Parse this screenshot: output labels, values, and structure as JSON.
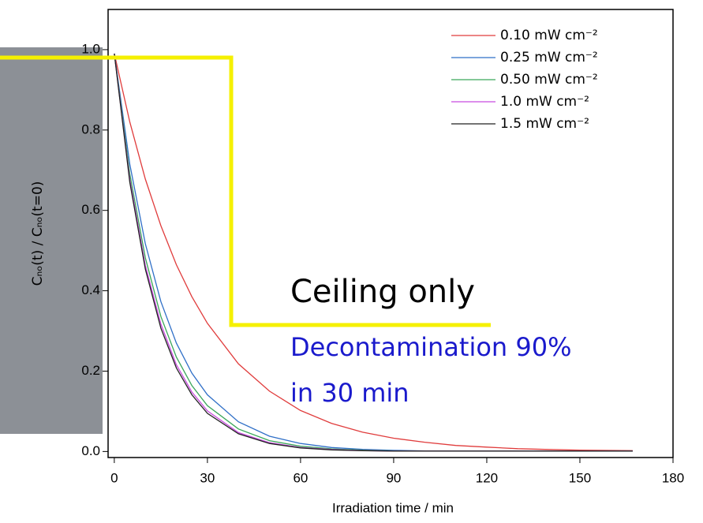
{
  "chart_data": {
    "type": "line",
    "xlabel": "Irradiation time / min",
    "ylabel": "Cₙₒ(t) / Cₙₒ(t=0)",
    "x": [
      0,
      5,
      10,
      15,
      20,
      25,
      30,
      40,
      50,
      60,
      70,
      80,
      90,
      100,
      110,
      120,
      130,
      140,
      150,
      167
    ],
    "series": [
      {
        "name": "0.10 mW cm⁻²",
        "color": "#e03c3c",
        "values": [
          0.99,
          0.82,
          0.678,
          0.562,
          0.465,
          0.385,
          0.319,
          0.218,
          0.15,
          0.102,
          0.07,
          0.048,
          0.033,
          0.023,
          0.015,
          0.011,
          0.007,
          0.005,
          0.0035,
          0.002
        ]
      },
      {
        "name": "0.25 mW cm⁻²",
        "color": "#2f6fc7",
        "values": [
          0.99,
          0.715,
          0.517,
          0.373,
          0.27,
          0.195,
          0.141,
          0.074,
          0.038,
          0.02,
          0.01,
          0.0055,
          0.0029,
          0.0015,
          0.001,
          0.001,
          0.001,
          0.001,
          0.001,
          0.001
        ]
      },
      {
        "name": "0.50 mW cm⁻²",
        "color": "#3aa65a",
        "values": [
          0.99,
          0.691,
          0.482,
          0.336,
          0.235,
          0.164,
          0.114,
          0.056,
          0.027,
          0.013,
          0.0065,
          0.0032,
          0.0015,
          0.001,
          0.001,
          0.001,
          0.001,
          0.001,
          0.001,
          0.001
        ]
      },
      {
        "name": "1.0 mW cm⁻²",
        "color": "#c84be0",
        "values": [
          0.99,
          0.677,
          0.463,
          0.317,
          0.216,
          0.148,
          0.101,
          0.047,
          0.022,
          0.01,
          0.005,
          0.0023,
          0.001,
          0.001,
          0.001,
          0.001,
          0.001,
          0.001,
          0.001,
          0.001
        ]
      },
      {
        "name": "1.5 mW cm⁻²",
        "color": "#222222",
        "values": [
          0.99,
          0.67,
          0.454,
          0.307,
          0.208,
          0.141,
          0.095,
          0.044,
          0.02,
          0.009,
          0.004,
          0.002,
          0.001,
          0.001,
          0.001,
          0.001,
          0.001,
          0.001,
          0.001,
          0.001
        ]
      }
    ],
    "xlim": [
      -2,
      180
    ],
    "ylim": [
      -0.015,
      1.1
    ],
    "xticks": [
      0,
      30,
      60,
      90,
      120,
      150,
      180
    ],
    "yticks": [
      {
        "value": 0,
        "label": "0.0"
      },
      0.2,
      0.4,
      0.6,
      0.8,
      {
        "value": 1,
        "label": "1.0"
      }
    ],
    "legend": "upper right",
    "annotations": [
      "Ceiling only",
      "Decontamination 90%",
      "in 30 min"
    ]
  }
}
